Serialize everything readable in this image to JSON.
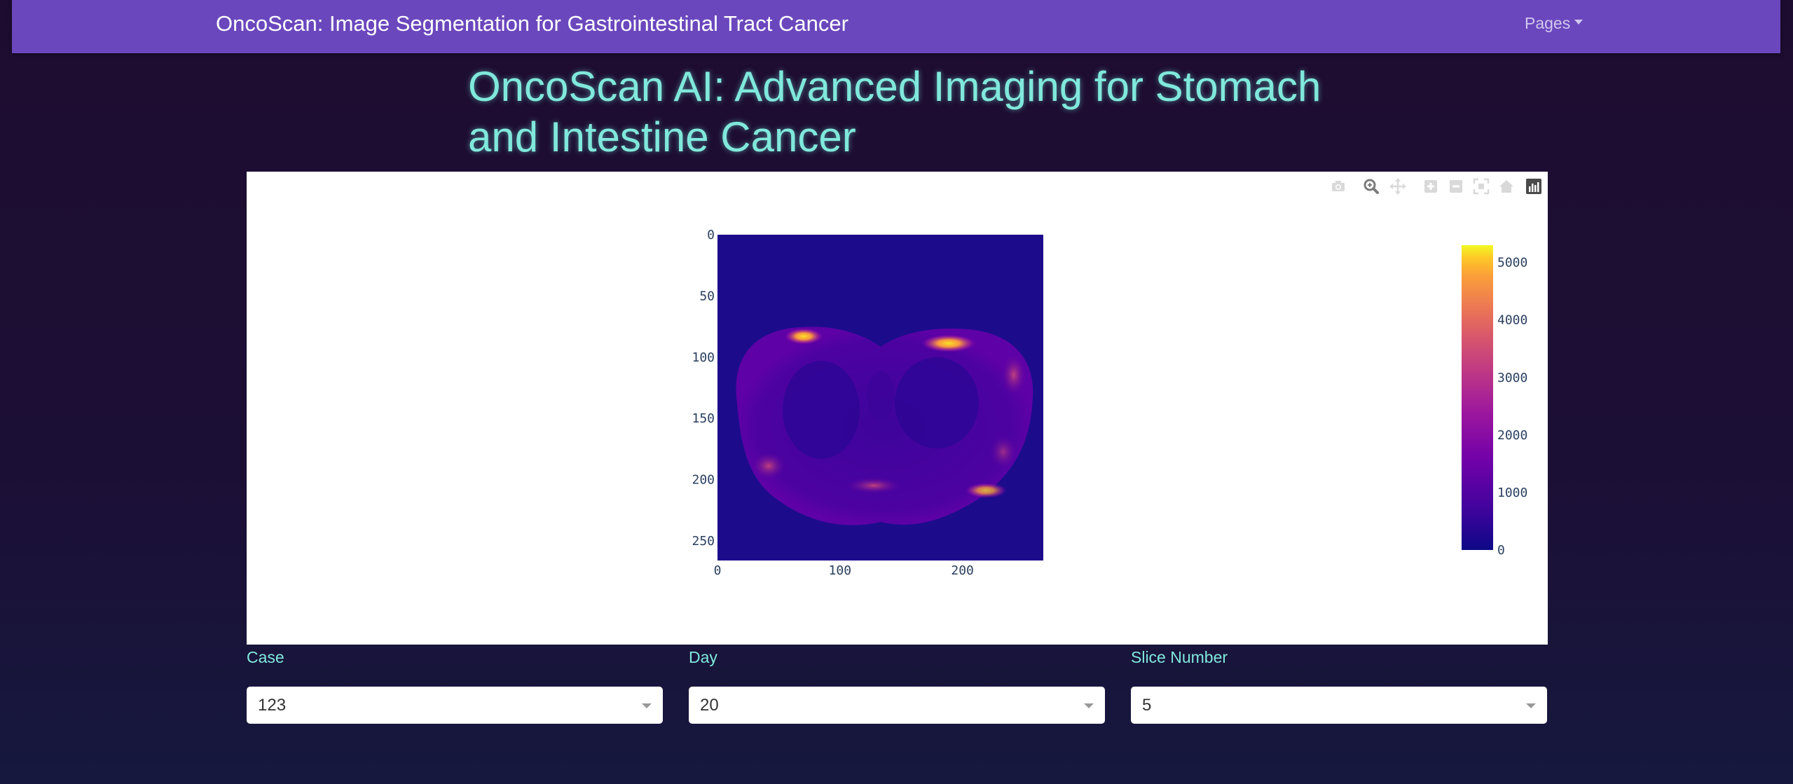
{
  "navbar": {
    "brand": "OncoScan: Image Segmentation for Gastrointestinal Tract Cancer",
    "pages_label": "Pages"
  },
  "page_title": "OncoScan AI: Advanced Imaging for Stomach and Intestine Cancer",
  "modebar": {
    "icons": [
      "camera-icon",
      "zoom-icon",
      "pan-icon",
      "zoom-in-icon",
      "zoom-out-icon",
      "autoscale-icon",
      "reset-axes-icon",
      "plotly-logo-icon"
    ]
  },
  "controls": {
    "case": {
      "label": "Case",
      "value": "123"
    },
    "day": {
      "label": "Day",
      "value": "20"
    },
    "slice": {
      "label": "Slice Number",
      "value": "5"
    }
  },
  "chart_data": {
    "type": "heatmap",
    "title": "",
    "colorscale": "plasma",
    "colors": {
      "low": "#1c0c8c",
      "mid": "#b33d9a",
      "high": "#f0f921"
    },
    "x_ticks": [
      0,
      100,
      200
    ],
    "y_ticks": [
      0,
      50,
      100,
      150,
      200,
      250
    ],
    "xlim": [
      0,
      266
    ],
    "ylim": [
      266,
      0
    ],
    "colorbar": {
      "ticks": [
        0,
        1000,
        2000,
        3000,
        4000,
        5000
      ],
      "range": [
        0,
        5300
      ]
    },
    "x_tick_labels": [
      "0",
      "100",
      "200"
    ],
    "y_tick_labels": [
      "0",
      "50",
      "100",
      "150",
      "200",
      "250"
    ],
    "colorbar_tick_labels": [
      "0",
      "1000",
      "2000",
      "3000",
      "4000",
      "5000"
    ],
    "image_description": "axial MRI slice of abdomen; bright regions near top left and top right edges and lower right edge"
  }
}
